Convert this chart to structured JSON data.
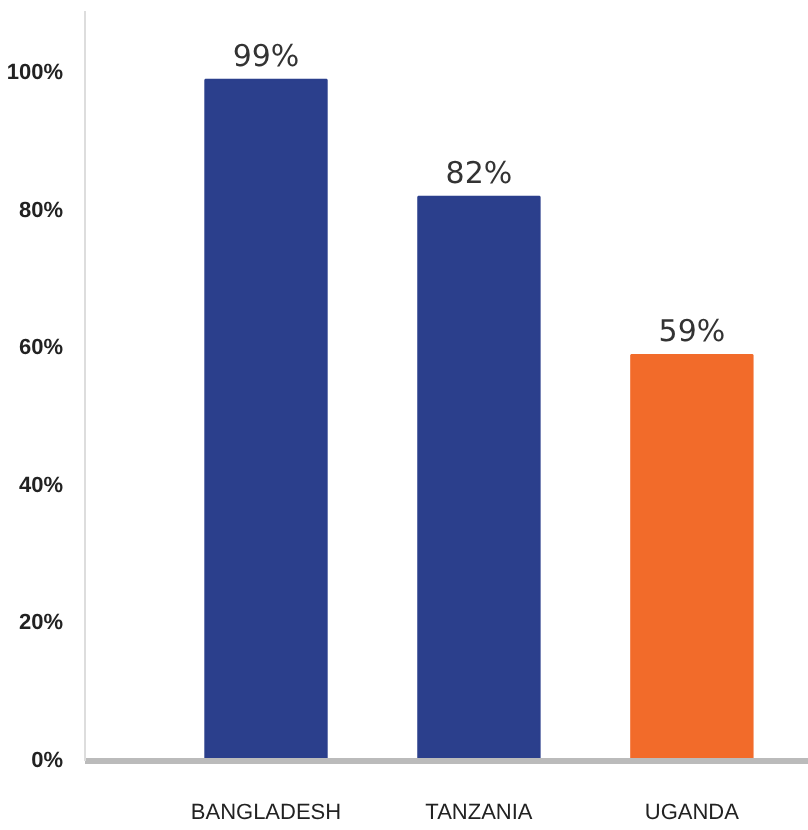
{
  "chart_data": {
    "type": "bar",
    "categories": [
      "BANGLADESH",
      "TANZANIA",
      "UGANDA"
    ],
    "values": [
      99,
      82,
      59
    ],
    "colors": [
      "#2b3f8c",
      "#2b3f8c",
      "#f26b2a"
    ],
    "ylim": [
      0,
      109
    ],
    "yticks": [
      {
        "value": 0,
        "label": "0%"
      },
      {
        "value": 20,
        "label": "20%"
      },
      {
        "value": 40,
        "label": "40%"
      },
      {
        "value": 60,
        "label": "60%"
      },
      {
        "value": 80,
        "label": "80%"
      },
      {
        "value": 100,
        "label": "100%"
      }
    ],
    "value_labels": [
      "99%",
      "82%",
      "59%"
    ],
    "grid": false
  }
}
